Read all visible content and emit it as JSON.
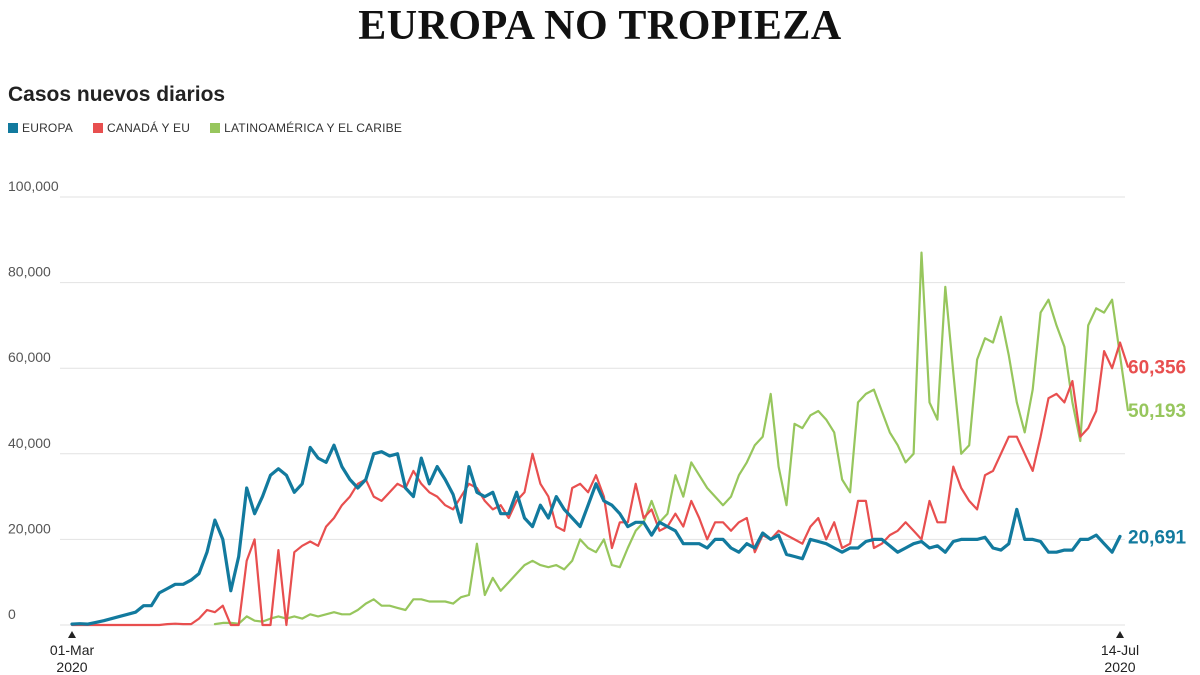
{
  "headline": "EUROPA NO TROPIEZA",
  "subtitle": "Casos nuevos diarios",
  "chart_data": {
    "type": "line",
    "title": "EUROPA NO TROPIEZA",
    "subtitle": "Casos nuevos diarios",
    "xlabel": "",
    "ylabel": "",
    "ylim": [
      0,
      100000
    ],
    "yticks": [
      0,
      20000,
      40000,
      60000,
      80000,
      100000
    ],
    "ytick_labels": [
      "0",
      "20,000",
      "40,000",
      "60,000",
      "80,000",
      "100,000"
    ],
    "x_start": "2020-03-01",
    "x_end": "2020-07-14",
    "x_tick_labels": [
      {
        "date": "2020-03-01",
        "line1": "01-Mar",
        "line2": "2020"
      },
      {
        "date": "2020-07-14",
        "line1": "14-Jul",
        "line2": "2020"
      }
    ],
    "grid": true,
    "legend_position": "top-left",
    "series": [
      {
        "name": "EUROPA",
        "color": "#127a9e",
        "end_label": "20,691",
        "values": [
          200,
          300,
          200,
          600,
          1000,
          1500,
          2000,
          2500,
          3000,
          4500,
          4500,
          7500,
          8500,
          9500,
          9500,
          10500,
          12000,
          17000,
          24500,
          20000,
          8000,
          16000,
          32000,
          26000,
          30000,
          35000,
          36500,
          35000,
          31000,
          33000,
          41500,
          39000,
          38000,
          42000,
          37000,
          34000,
          32000,
          34000,
          40000,
          40500,
          39500,
          40000,
          32000,
          30000,
          39000,
          33000,
          37000,
          34000,
          30500,
          24000,
          37000,
          31000,
          30000,
          31000,
          26000,
          26000,
          31000,
          25000,
          23000,
          28000,
          25000,
          30000,
          27000,
          25000,
          23000,
          28000,
          33000,
          29000,
          28000,
          26000,
          23000,
          24000,
          24000,
          21000,
          24000,
          23000,
          22000,
          19000,
          19000,
          19000,
          18000,
          20000,
          20000,
          18000,
          17000,
          19000,
          18000,
          21500,
          20000,
          21000,
          16500,
          16000,
          15500,
          20000,
          19500,
          19000,
          18000,
          17000,
          18000,
          18000,
          19500,
          20000,
          20000,
          18500,
          17000,
          18000,
          19000,
          19500,
          18000,
          18500,
          17000,
          19500,
          20000,
          20000,
          20000,
          20500,
          18000,
          17500,
          19000,
          27000,
          20000,
          20000,
          19500,
          17000,
          17000,
          17500,
          17500,
          20000,
          20000,
          21000,
          19000,
          17000,
          20691
        ]
      },
      {
        "name": "CANADÁ Y EU",
        "color": "#e84f4f",
        "end_label": "60,356",
        "values": [
          0,
          0,
          0,
          0,
          0,
          0,
          0,
          0,
          0,
          0,
          0,
          0,
          200,
          300,
          200,
          200,
          1500,
          3500,
          3000,
          4500,
          0,
          0,
          15000,
          20000,
          0,
          0,
          17500,
          0,
          17000,
          18500,
          19500,
          18500,
          23000,
          25000,
          28000,
          30000,
          33000,
          34000,
          30000,
          29000,
          31000,
          33000,
          32000,
          36000,
          33000,
          31000,
          30000,
          28000,
          27000,
          30000,
          33000,
          32000,
          29000,
          27000,
          28000,
          25000,
          29000,
          31000,
          40000,
          33000,
          30000,
          23000,
          22000,
          32000,
          33000,
          31000,
          35000,
          30000,
          18000,
          24000,
          24000,
          33000,
          25000,
          27000,
          22000,
          23000,
          26000,
          23000,
          29000,
          25000,
          20000,
          24000,
          24000,
          22000,
          24000,
          25000,
          17000,
          21000,
          20000,
          22000,
          21000,
          20000,
          19000,
          23000,
          25000,
          20000,
          24000,
          18000,
          19000,
          29000,
          29000,
          18000,
          19000,
          21000,
          22000,
          24000,
          22000,
          20000,
          29000,
          24000,
          24000,
          37000,
          32000,
          29000,
          27000,
          35000,
          36000,
          40000,
          44000,
          44000,
          40000,
          36000,
          44000,
          53000,
          54000,
          52000,
          57000,
          44000,
          46000,
          50000,
          64000,
          60000,
          66000,
          60356
        ]
      },
      {
        "name": "LATINOAMÉRICA Y EL CARIBE",
        "color": "#97c65d",
        "end_label": "50,193",
        "values": [
          null,
          null,
          null,
          null,
          null,
          null,
          null,
          null,
          null,
          null,
          null,
          null,
          null,
          null,
          null,
          null,
          null,
          null,
          200,
          500,
          500,
          300,
          2000,
          1000,
          800,
          1500,
          2000,
          1500,
          2000,
          1500,
          2500,
          2000,
          2500,
          3000,
          2500,
          2500,
          3500,
          5000,
          6000,
          4500,
          4500,
          4000,
          3500,
          6000,
          6000,
          5500,
          5500,
          5500,
          5000,
          6500,
          7000,
          19000,
          7000,
          11000,
          8000,
          10000,
          12000,
          14000,
          15000,
          14000,
          13500,
          14000,
          13000,
          15000,
          20000,
          18000,
          17000,
          20000,
          14000,
          13500,
          18000,
          22000,
          24000,
          29000,
          24000,
          26000,
          35000,
          30000,
          38000,
          35000,
          32000,
          30000,
          28000,
          30000,
          35000,
          38000,
          42000,
          44000,
          54000,
          37000,
          28000,
          47000,
          46000,
          49000,
          50000,
          48000,
          45000,
          34000,
          31000,
          52000,
          54000,
          55000,
          50000,
          45000,
          42000,
          38000,
          40000,
          87000,
          52000,
          48000,
          79000,
          59000,
          40000,
          42000,
          62000,
          67000,
          66000,
          72000,
          63000,
          52000,
          45000,
          55000,
          73000,
          76000,
          70000,
          65000,
          52000,
          43000,
          70000,
          74000,
          73000,
          76000,
          63000,
          50193
        ]
      }
    ]
  }
}
